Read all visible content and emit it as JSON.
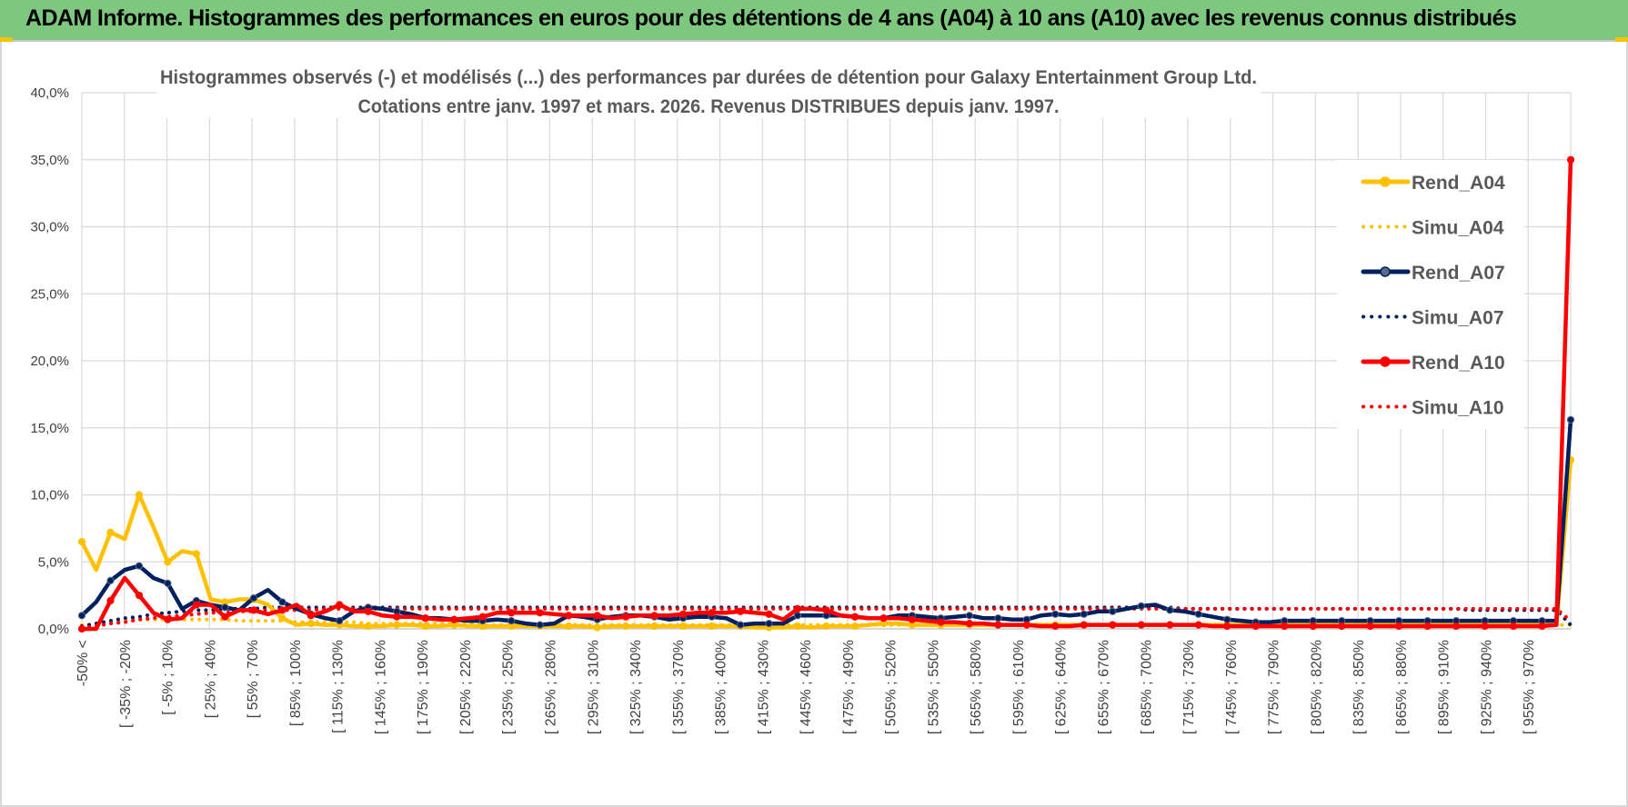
{
  "banner": {
    "title": "ADAM Informe. Histogrammes des performances en euros pour des détentions de 4 ans (A04) à 10 ans (A10) avec les revenus connus distribués",
    "color": "#7dc87e"
  },
  "chart_data": {
    "type": "line",
    "title": "Histogrammes observés (-) et modélisés (...) des performances par durées de détention pour Galaxy Entertainment Group Ltd.",
    "subtitle": "Cotations entre janv. 1997 et mars. 2026. Revenus DISTRIBUES depuis janv. 1997.",
    "ylim": [
      0,
      40
    ],
    "yticks": [
      "0,0%",
      "5,0%",
      "10,0%",
      "15,0%",
      "20,0%",
      "25,0%",
      "30,0%",
      "35,0%",
      "40,0%"
    ],
    "x_tick_labels": [
      "-50% <",
      "[ -35% ; -20%",
      "[ -5% ; 10%",
      "[ 25% ; 40%",
      "[ 55% ; 70%",
      "[ 85% ; 100%",
      "[ 115% ; 130%",
      "[ 145% ; 160%",
      "[ 175% ; 190%",
      "[ 205% ; 220%",
      "[ 235% ; 250%",
      "[ 265% ; 280%",
      "[ 295% ; 310%",
      "[ 325% ; 340%",
      "[ 355% ; 370%",
      "[ 385% ; 400%",
      "[ 415% ; 430%",
      "[ 445% ; 460%",
      "[ 475% ; 490%",
      "[ 505% ; 520%",
      "[ 535% ; 550%",
      "[ 565% ; 580%",
      "[ 595% ; 610%",
      "[ 625% ; 640%",
      "[ 655% ; 670%",
      "[ 685% ; 700%",
      "[ 715% ; 730%",
      "[ 745% ; 760%",
      "[ 775% ; 790%",
      "[ 805% ; 820%",
      "[ 835% ; 850%",
      "[ 865% ; 880%",
      "[ 895% ; 910%",
      "[ 925% ; 940%",
      "[ 955% ; 970%"
    ],
    "grid": true,
    "legend_position": "right",
    "series": [
      {
        "name": "Rend_A04",
        "color": "#ffc000",
        "style": "solid",
        "values": [
          6.5,
          4.4,
          7.2,
          6.7,
          10.0,
          7.6,
          5.0,
          5.8,
          5.6,
          2.2,
          2.0,
          2.2,
          2.2,
          1.8,
          0.8,
          0.3,
          0.4,
          0.3,
          0.3,
          0.2,
          0.2,
          0.2,
          0.3,
          0.3,
          0.2,
          0.2,
          0.3,
          0.2,
          0.2,
          0.2,
          0.2,
          0.2,
          0.2,
          0.2,
          0.2,
          0.2,
          0.1,
          0.2,
          0.2,
          0.2,
          0.2,
          0.2,
          0.2,
          0.2,
          0.2,
          0.2,
          0.2,
          0.1,
          0.1,
          0.1,
          0.2,
          0.1,
          0.2,
          0.2,
          0.2,
          0.3,
          0.4,
          0.4,
          0.3,
          0.3,
          0.3,
          0.3,
          0.3,
          0.3,
          0.3,
          0.3,
          0.3,
          0.3,
          0.3,
          0.3,
          0.3,
          0.3,
          0.3,
          0.3,
          0.3,
          0.3,
          0.3,
          0.3,
          0.3,
          0.3,
          0.3,
          0.3,
          0.3,
          0.3,
          0.3,
          0.3,
          0.3,
          0.3,
          0.3,
          0.3,
          0.3,
          0.3,
          0.3,
          0.3,
          0.3,
          0.3,
          0.3,
          0.3,
          0.3,
          0.3,
          0.3,
          0.3,
          0.3,
          0.3,
          12.6
        ]
      },
      {
        "name": "Simu_A04",
        "color": "#ffc000",
        "style": "dotted",
        "values": [
          0.3,
          0.3,
          0.5,
          0.6,
          0.7,
          0.7,
          0.7,
          0.7,
          0.7,
          0.7,
          0.7,
          0.6,
          0.6,
          0.6,
          0.6,
          0.5,
          0.5,
          0.5,
          0.5,
          0.5,
          0.4,
          0.4,
          0.4,
          0.4,
          0.4,
          0.4,
          0.4,
          0.4,
          0.3,
          0.3,
          0.3,
          0.3,
          0.3,
          0.3,
          0.3,
          0.3,
          0.3,
          0.3,
          0.3,
          0.3,
          0.3,
          0.3,
          0.3,
          0.3,
          0.3,
          0.3,
          0.3,
          0.3,
          0.3,
          0.3,
          0.3,
          0.3,
          0.3,
          0.3,
          0.3,
          0.3,
          0.3,
          0.3,
          0.3,
          0.3,
          0.3,
          0.3,
          0.3,
          0.3,
          0.3,
          0.3,
          0.3,
          0.3,
          0.3,
          0.3,
          0.3,
          0.3,
          0.3,
          0.3,
          0.3,
          0.3,
          0.3,
          0.3,
          0.3,
          0.3,
          0.3,
          0.3,
          0.3,
          0.3,
          0.3,
          0.3,
          0.3,
          0.3,
          0.3,
          0.3,
          0.3,
          0.3,
          0.3,
          0.3,
          0.3,
          0.3,
          0.3,
          0.3,
          0.3,
          0.3,
          0.3,
          0.3,
          0.3,
          0.3,
          0.3
        ]
      },
      {
        "name": "Rend_A07",
        "color": "#002060",
        "style": "solid",
        "values": [
          1.0,
          2.0,
          3.6,
          4.4,
          4.7,
          3.8,
          3.4,
          1.5,
          2.1,
          1.8,
          1.6,
          1.4,
          2.3,
          2.9,
          2.0,
          1.5,
          1.1,
          0.8,
          0.6,
          1.3,
          1.6,
          1.5,
          1.3,
          1.1,
          0.8,
          0.8,
          0.7,
          0.6,
          0.6,
          0.7,
          0.6,
          0.4,
          0.3,
          0.4,
          1.0,
          0.9,
          0.7,
          0.9,
          1.0,
          1.0,
          0.9,
          0.7,
          0.8,
          0.9,
          0.9,
          0.8,
          0.3,
          0.4,
          0.4,
          0.4,
          1.0,
          1.0,
          1.0,
          1.0,
          0.9,
          0.8,
          0.8,
          1.0,
          1.0,
          0.9,
          0.8,
          0.9,
          1.0,
          0.8,
          0.8,
          0.7,
          0.7,
          1.0,
          1.1,
          1.0,
          1.1,
          1.3,
          1.3,
          1.5,
          1.7,
          1.8,
          1.4,
          1.3,
          1.1,
          0.9,
          0.7,
          0.6,
          0.5,
          0.5,
          0.6,
          0.6,
          0.6,
          0.6,
          0.6,
          0.6,
          0.6,
          0.6,
          0.6,
          0.6,
          0.6,
          0.6,
          0.6,
          0.6,
          0.6,
          0.6,
          0.6,
          0.6,
          0.6,
          0.6,
          15.6
        ]
      },
      {
        "name": "Simu_A07",
        "color": "#002060",
        "style": "dotted",
        "values": [
          0.2,
          0.4,
          0.6,
          0.8,
          0.9,
          1.1,
          1.2,
          1.3,
          1.4,
          1.4,
          1.5,
          1.5,
          1.5,
          1.6,
          1.6,
          1.6,
          1.6,
          1.6,
          1.6,
          1.6,
          1.6,
          1.6,
          1.6,
          1.6,
          1.6,
          1.6,
          1.6,
          1.6,
          1.6,
          1.6,
          1.6,
          1.6,
          1.6,
          1.6,
          1.6,
          1.6,
          1.6,
          1.6,
          1.6,
          1.6,
          1.6,
          1.6,
          1.6,
          1.6,
          1.6,
          1.6,
          1.6,
          1.6,
          1.6,
          1.6,
          1.6,
          1.6,
          1.6,
          1.6,
          1.6,
          1.6,
          1.6,
          1.6,
          1.6,
          1.6,
          1.6,
          1.6,
          1.6,
          1.6,
          1.6,
          1.6,
          1.6,
          1.6,
          1.6,
          1.6,
          1.6,
          1.6,
          1.6,
          1.6,
          1.6,
          1.6,
          1.6,
          1.5,
          1.5,
          1.5,
          1.5,
          1.5,
          1.5,
          1.5,
          1.5,
          1.5,
          1.5,
          1.5,
          1.5,
          1.5,
          1.5,
          1.5,
          1.5,
          1.5,
          1.5,
          1.5,
          1.5,
          1.4,
          1.4,
          1.4,
          1.4,
          1.4,
          1.4,
          1.4,
          0.3
        ]
      },
      {
        "name": "Rend_A10",
        "color": "#ff0000",
        "style": "solid",
        "values": [
          0.0,
          0.0,
          2.1,
          3.8,
          2.5,
          1.2,
          0.7,
          0.8,
          1.8,
          1.8,
          0.9,
          1.4,
          1.4,
          1.1,
          1.4,
          1.8,
          1.0,
          1.3,
          1.8,
          1.3,
          1.3,
          1.0,
          0.9,
          0.9,
          0.8,
          0.7,
          0.7,
          0.8,
          0.9,
          1.2,
          1.2,
          1.2,
          1.2,
          1.1,
          1.0,
          1.0,
          1.0,
          0.8,
          0.9,
          1.0,
          1.0,
          1.0,
          1.1,
          1.2,
          1.2,
          1.2,
          1.3,
          1.2,
          1.1,
          0.7,
          1.5,
          1.5,
          1.4,
          1.0,
          0.9,
          0.8,
          0.8,
          0.8,
          0.7,
          0.6,
          0.5,
          0.5,
          0.4,
          0.4,
          0.3,
          0.3,
          0.3,
          0.2,
          0.2,
          0.2,
          0.3,
          0.3,
          0.3,
          0.3,
          0.3,
          0.3,
          0.3,
          0.3,
          0.3,
          0.2,
          0.2,
          0.2,
          0.2,
          0.2,
          0.2,
          0.2,
          0.2,
          0.2,
          0.2,
          0.2,
          0.2,
          0.2,
          0.2,
          0.2,
          0.2,
          0.2,
          0.2,
          0.2,
          0.2,
          0.2,
          0.2,
          0.2,
          0.2,
          0.3,
          35.0
        ]
      },
      {
        "name": "Simu_A10",
        "color": "#ff0000",
        "style": "dotted",
        "values": [
          0.1,
          0.2,
          0.4,
          0.5,
          0.7,
          0.8,
          0.9,
          1.0,
          1.1,
          1.2,
          1.2,
          1.3,
          1.3,
          1.4,
          1.4,
          1.4,
          1.4,
          1.5,
          1.5,
          1.5,
          1.5,
          1.5,
          1.5,
          1.5,
          1.5,
          1.5,
          1.5,
          1.5,
          1.5,
          1.5,
          1.5,
          1.5,
          1.5,
          1.5,
          1.5,
          1.5,
          1.5,
          1.5,
          1.5,
          1.5,
          1.5,
          1.5,
          1.5,
          1.5,
          1.5,
          1.5,
          1.5,
          1.5,
          1.5,
          1.5,
          1.5,
          1.5,
          1.5,
          1.5,
          1.5,
          1.5,
          1.5,
          1.5,
          1.5,
          1.5,
          1.5,
          1.5,
          1.5,
          1.5,
          1.5,
          1.5,
          1.5,
          1.5,
          1.5,
          1.5,
          1.5,
          1.5,
          1.5,
          1.5,
          1.5,
          1.5,
          1.5,
          1.5,
          1.5,
          1.5,
          1.5,
          1.5,
          1.5,
          1.5,
          1.5,
          1.5,
          1.5,
          1.5,
          1.5,
          1.5,
          1.5,
          1.5,
          1.5,
          1.5,
          1.5,
          1.5,
          1.5,
          1.5,
          1.5,
          1.5,
          1.5,
          1.5,
          1.5,
          1.5,
          0.6
        ]
      }
    ]
  }
}
